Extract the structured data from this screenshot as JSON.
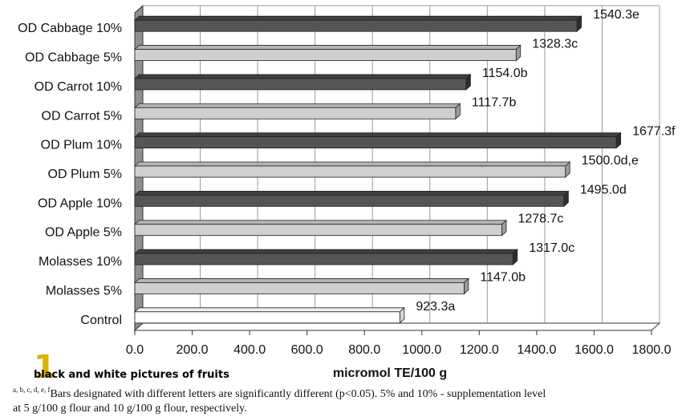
{
  "chart_data": {
    "type": "bar",
    "orientation": "horizontal",
    "categories": [
      "OD Cabbage 10%",
      "OD Cabbage 5%",
      "OD Carrot 10%",
      "OD Carrot 5%",
      "OD Plum 10%",
      "OD Plum 5%",
      "OD Apple 10%",
      "OD Apple 5%",
      "Molasses 10%",
      "Molasses 5%",
      "Control"
    ],
    "values": [
      1540.3,
      1328.3,
      1154.0,
      1117.7,
      1677.3,
      1500.0,
      1495.0,
      1278.7,
      1317.0,
      1147.0,
      923.3
    ],
    "value_labels": [
      "1540.3e",
      "1328.3c",
      "1154.0b",
      "1117.7b",
      "1677.3f",
      "1500.0d,e",
      "1495.0d",
      "1278.7c",
      "1317.0c",
      "1147.0b",
      "923.3a"
    ],
    "bar_colors": [
      "#555555",
      "#cfcfcf",
      "#555555",
      "#cfcfcf",
      "#555555",
      "#cfcfcf",
      "#555555",
      "#cfcfcf",
      "#555555",
      "#cfcfcf",
      "#ffffff"
    ],
    "xlabel": "micromol TE/100 g",
    "xlim": [
      0,
      1800
    ],
    "xticks": [
      0,
      200,
      400,
      600,
      800,
      1000,
      1200,
      1400,
      1600,
      1800
    ],
    "xtick_labels": [
      "0.0",
      "200.0",
      "400.0",
      "600.0",
      "800.0",
      "1000.0",
      "1200.0",
      "1400.0",
      "1600.0",
      "1800.0"
    ],
    "grid": true,
    "style": "3d"
  },
  "watermark": {
    "number": "1",
    "text": "black and white pictures of fruits"
  },
  "footnote": {
    "superscript": "a, b, c, d, e, f",
    "line1": "Bars designated with different letters are significantly different (p<0.05). 5% and 10% - supplementation level",
    "line2": "at 5 g/100 g flour and 10 g/100 g flour, respectively."
  }
}
